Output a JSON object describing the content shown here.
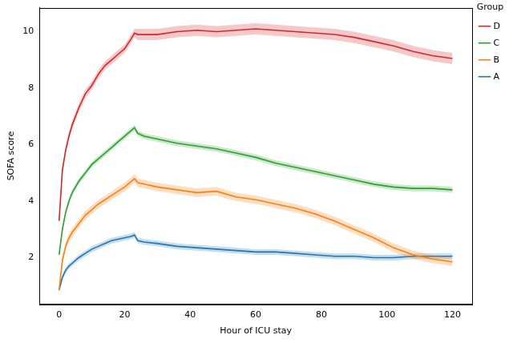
{
  "chart_data": {
    "type": "line",
    "x_label": "Hour of ICU stay",
    "y_label": "SOFA score",
    "legend_title": "Group",
    "legend": "right",
    "grid": false,
    "xlim": [
      -6,
      126
    ],
    "xticks": [
      0,
      20,
      40,
      60,
      80,
      100,
      120
    ],
    "ylim": [
      0.35,
      10.85
    ],
    "yticks": [
      2,
      4,
      6,
      8,
      10
    ],
    "x": [
      0,
      1,
      2,
      3,
      4,
      6,
      8,
      10,
      12,
      14,
      16,
      18,
      20,
      22,
      23,
      24,
      26,
      30,
      36,
      42,
      48,
      54,
      60,
      66,
      72,
      78,
      84,
      90,
      96,
      102,
      108,
      114,
      120
    ],
    "series": [
      {
        "name": "D",
        "color": "#d62728",
        "values": [
          3.3,
          5.1,
          5.8,
          6.3,
          6.7,
          7.3,
          7.8,
          8.1,
          8.5,
          8.8,
          9.0,
          9.2,
          9.4,
          9.75,
          9.95,
          9.9,
          9.9,
          9.9,
          10.0,
          10.05,
          10.0,
          10.05,
          10.1,
          10.05,
          10.0,
          9.95,
          9.9,
          9.8,
          9.65,
          9.5,
          9.3,
          9.15,
          9.05
        ],
        "lower": [
          3.15,
          4.95,
          5.65,
          6.15,
          6.55,
          7.15,
          7.65,
          7.95,
          8.35,
          8.65,
          8.85,
          9.05,
          9.25,
          9.6,
          9.8,
          9.7,
          9.7,
          9.7,
          9.8,
          9.85,
          9.8,
          9.85,
          9.9,
          9.85,
          9.8,
          9.75,
          9.7,
          9.6,
          9.45,
          9.3,
          9.1,
          8.95,
          8.85
        ],
        "upper": [
          3.45,
          5.25,
          5.95,
          6.45,
          6.85,
          7.45,
          7.95,
          8.25,
          8.65,
          8.95,
          9.15,
          9.35,
          9.55,
          9.9,
          10.1,
          10.1,
          10.1,
          10.1,
          10.2,
          10.25,
          10.2,
          10.25,
          10.3,
          10.25,
          10.2,
          10.15,
          10.1,
          10.0,
          9.85,
          9.7,
          9.5,
          9.35,
          9.25
        ]
      },
      {
        "name": "C",
        "color": "#2ca02c",
        "values": [
          2.1,
          3.0,
          3.6,
          4.0,
          4.3,
          4.7,
          5.0,
          5.3,
          5.5,
          5.7,
          5.9,
          6.1,
          6.3,
          6.5,
          6.6,
          6.4,
          6.3,
          6.2,
          6.05,
          5.95,
          5.85,
          5.7,
          5.55,
          5.35,
          5.2,
          5.05,
          4.9,
          4.75,
          4.6,
          4.5,
          4.45,
          4.45,
          4.4
        ],
        "lower": [
          2.0,
          2.9,
          3.5,
          3.9,
          4.2,
          4.6,
          4.9,
          5.2,
          5.4,
          5.6,
          5.8,
          6.0,
          6.2,
          6.4,
          6.5,
          6.3,
          6.2,
          6.1,
          5.95,
          5.85,
          5.75,
          5.6,
          5.45,
          5.25,
          5.1,
          4.95,
          4.8,
          4.65,
          4.5,
          4.4,
          4.35,
          4.35,
          4.3
        ],
        "upper": [
          2.2,
          3.1,
          3.7,
          4.1,
          4.4,
          4.8,
          5.1,
          5.4,
          5.6,
          5.8,
          6.0,
          6.2,
          6.4,
          6.6,
          6.7,
          6.5,
          6.4,
          6.3,
          6.15,
          6.05,
          5.95,
          5.8,
          5.65,
          5.45,
          5.3,
          5.15,
          5.0,
          4.85,
          4.7,
          4.6,
          4.55,
          4.55,
          4.5
        ]
      },
      {
        "name": "B",
        "color": "#ff7f0e",
        "values": [
          0.85,
          1.9,
          2.4,
          2.7,
          2.9,
          3.2,
          3.5,
          3.7,
          3.9,
          4.05,
          4.2,
          4.35,
          4.5,
          4.7,
          4.8,
          4.65,
          4.6,
          4.5,
          4.4,
          4.3,
          4.35,
          4.15,
          4.05,
          3.9,
          3.75,
          3.55,
          3.3,
          3.0,
          2.7,
          2.35,
          2.1,
          1.95,
          1.85
        ],
        "lower": [
          0.7,
          1.75,
          2.25,
          2.55,
          2.75,
          3.05,
          3.35,
          3.55,
          3.75,
          3.9,
          4.05,
          4.2,
          4.35,
          4.55,
          4.65,
          4.5,
          4.45,
          4.35,
          4.25,
          4.15,
          4.2,
          4.0,
          3.9,
          3.75,
          3.6,
          3.4,
          3.15,
          2.85,
          2.55,
          2.2,
          1.95,
          1.8,
          1.7
        ],
        "upper": [
          1.0,
          2.05,
          2.55,
          2.85,
          3.05,
          3.35,
          3.65,
          3.85,
          4.05,
          4.2,
          4.35,
          4.5,
          4.65,
          4.85,
          4.95,
          4.8,
          4.75,
          4.65,
          4.55,
          4.45,
          4.5,
          4.3,
          4.2,
          4.05,
          3.9,
          3.7,
          3.45,
          3.15,
          2.85,
          2.5,
          2.25,
          2.1,
          2.0
        ]
      },
      {
        "name": "A",
        "color": "#1f77b4",
        "values": [
          0.85,
          1.3,
          1.55,
          1.7,
          1.8,
          2.0,
          2.15,
          2.3,
          2.4,
          2.5,
          2.6,
          2.65,
          2.7,
          2.75,
          2.8,
          2.6,
          2.55,
          2.5,
          2.4,
          2.35,
          2.3,
          2.25,
          2.2,
          2.2,
          2.15,
          2.1,
          2.05,
          2.05,
          2.0,
          2.0,
          2.05,
          2.05,
          2.05
        ],
        "lower": [
          0.75,
          1.2,
          1.45,
          1.6,
          1.7,
          1.9,
          2.05,
          2.2,
          2.3,
          2.4,
          2.5,
          2.55,
          2.6,
          2.65,
          2.7,
          2.5,
          2.45,
          2.4,
          2.3,
          2.25,
          2.2,
          2.15,
          2.1,
          2.1,
          2.05,
          2.0,
          1.95,
          1.95,
          1.9,
          1.9,
          1.95,
          1.95,
          1.95
        ],
        "upper": [
          0.95,
          1.4,
          1.65,
          1.8,
          1.9,
          2.1,
          2.25,
          2.4,
          2.5,
          2.6,
          2.7,
          2.75,
          2.8,
          2.85,
          2.9,
          2.7,
          2.65,
          2.6,
          2.5,
          2.45,
          2.4,
          2.35,
          2.3,
          2.3,
          2.25,
          2.2,
          2.15,
          2.15,
          2.1,
          2.1,
          2.15,
          2.15,
          2.15
        ]
      }
    ]
  }
}
